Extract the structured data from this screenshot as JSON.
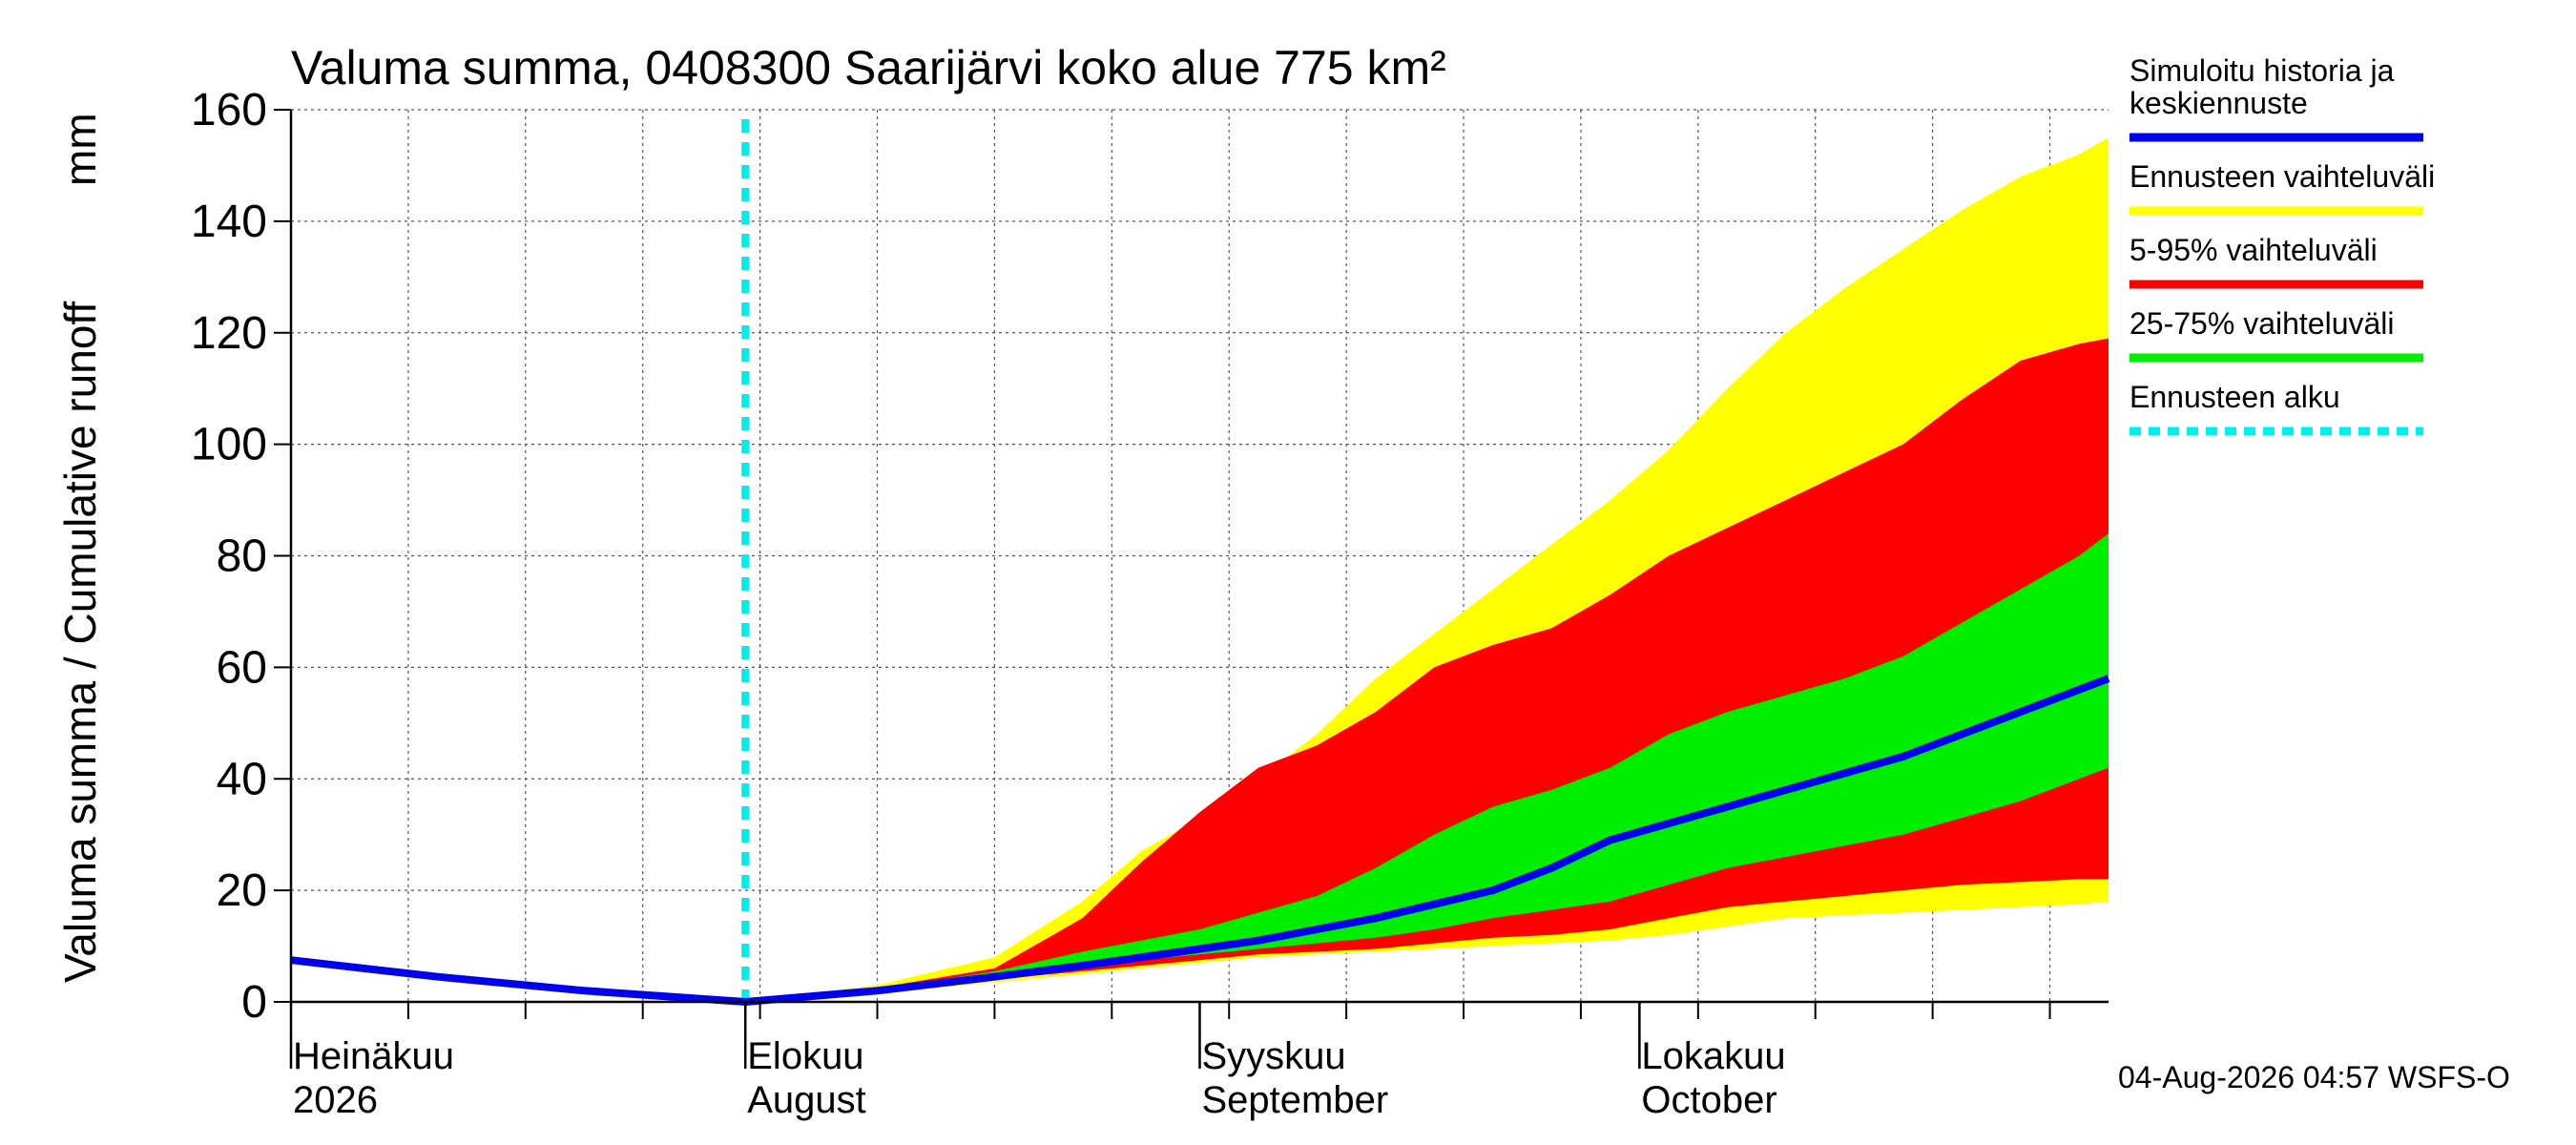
{
  "title": "Valuma summa, 0408300 Saarijärvi koko alue 775 km²",
  "y_label_fi": "Valuma summa / Cumulative runoff",
  "y_unit": "mm",
  "footer_text": "04-Aug-2026 04:57 WSFS-O",
  "legend": [
    {
      "label_line1": "Simuloitu historia ja",
      "label_line2": "keskiennuste",
      "color": "#0000ee",
      "style": "solid"
    },
    {
      "label_line1": "Ennusteen vaihteluväli",
      "label_line2": "",
      "color": "#ffff00",
      "style": "solid"
    },
    {
      "label_line1": "5-95% vaihteluväli",
      "label_line2": "",
      "color": "#ff0000",
      "style": "solid"
    },
    {
      "label_line1": "25-75% vaihteluväli",
      "label_line2": "",
      "color": "#00ee00",
      "style": "solid"
    },
    {
      "label_line1": "Ennusteen alku",
      "label_line2": "",
      "color": "#00eeee",
      "style": "dashed"
    }
  ],
  "x_month_labels": [
    {
      "line1": "Heinäkuu",
      "line2": "2026",
      "day": 0
    },
    {
      "line1": "Elokuu",
      "line2": "August",
      "day": 31
    },
    {
      "line1": "Syyskuu",
      "line2": "September",
      "day": 62
    },
    {
      "line1": "Lokakuu",
      "line2": "October",
      "day": 92
    }
  ],
  "chart_data": {
    "type": "area",
    "x_unit": "days since 2026-07-01",
    "x_range": [
      0,
      124
    ],
    "ylim": [
      0,
      160
    ],
    "yticks": [
      0,
      20,
      40,
      60,
      80,
      100,
      120,
      140,
      160
    ],
    "grid": true,
    "forecast_start_day": 31,
    "bands": {
      "ennusteen_vaihteluvali": {
        "x": [
          31,
          40,
          48,
          54,
          58,
          62,
          66,
          70,
          74,
          78,
          82,
          86,
          90,
          94,
          98,
          102,
          106,
          110,
          114,
          118,
          122,
          124
        ],
        "low": [
          0,
          1.5,
          3.5,
          5,
          6,
          7,
          8,
          8.5,
          9,
          9.5,
          10,
          10.5,
          11,
          12,
          13.5,
          15,
          15.5,
          16,
          16.5,
          17,
          17.5,
          18
        ],
        "high": [
          0,
          3,
          8,
          18,
          27,
          33,
          40,
          48,
          58,
          66,
          74,
          82,
          90,
          99,
          110,
          120,
          128,
          135,
          142,
          148,
          152,
          155
        ]
      },
      "p5_95": {
        "x": [
          31,
          40,
          48,
          52,
          54,
          58,
          62,
          66,
          70,
          74,
          78,
          82,
          86,
          90,
          94,
          98,
          102,
          106,
          110,
          114,
          118,
          122,
          124
        ],
        "low": [
          0,
          1.5,
          4,
          5,
          5.5,
          6.5,
          7.5,
          8.5,
          9,
          9.5,
          10.5,
          11.5,
          12,
          13,
          15,
          17,
          18,
          19,
          20,
          21,
          21.5,
          22,
          22
        ],
        "high": [
          0,
          2.5,
          6,
          12,
          15,
          25,
          34,
          42,
          46,
          52,
          60,
          64,
          67,
          73,
          80,
          85,
          90,
          95,
          100,
          108,
          115,
          118,
          119
        ]
      },
      "p25_75": {
        "x": [
          31,
          40,
          48,
          54,
          58,
          62,
          66,
          70,
          74,
          78,
          82,
          86,
          90,
          94,
          98,
          102,
          106,
          110,
          114,
          118,
          122,
          124
        ],
        "low": [
          0,
          1.8,
          4.5,
          6.5,
          7.5,
          8.5,
          9.5,
          10.5,
          11.5,
          13,
          15,
          16.5,
          18,
          21,
          24,
          26,
          28,
          30,
          33,
          36,
          40,
          42
        ],
        "high": [
          0,
          2.2,
          5.5,
          9,
          11,
          13,
          16,
          19,
          24,
          30,
          35,
          38,
          42,
          48,
          52,
          55,
          58,
          62,
          68,
          74,
          80,
          84
        ]
      }
    },
    "series": [
      {
        "name": "Simuloitu historia ja keskiennuste",
        "x": [
          0,
          10,
          20,
          31,
          40,
          48,
          54,
          58,
          62,
          66,
          70,
          74,
          78,
          82,
          86,
          90,
          94,
          98,
          102,
          106,
          110,
          114,
          118,
          122,
          124
        ],
        "y": [
          7.5,
          4.5,
          2,
          0,
          2,
          4.5,
          6.5,
          8,
          9.5,
          11,
          13,
          15,
          17.5,
          20,
          24,
          29,
          32,
          35,
          38,
          41,
          44,
          48,
          52,
          56,
          58
        ]
      }
    ]
  }
}
